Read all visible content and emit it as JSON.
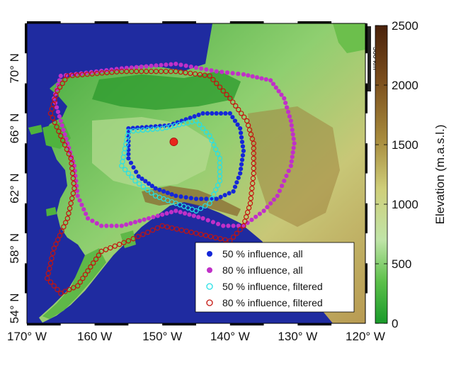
{
  "map": {
    "lon_range": [
      -170,
      -120
    ],
    "lat_range": [
      53,
      73
    ],
    "lon_ticks": [
      {
        "value": -170,
        "label": "170° W"
      },
      {
        "value": -160,
        "label": "160 W"
      },
      {
        "value": -150,
        "label": "150° W"
      },
      {
        "value": -140,
        "label": "140° W"
      },
      {
        "value": -130,
        "label": "130° W"
      },
      {
        "value": -120,
        "label": "120° W"
      }
    ],
    "lat_ticks": [
      {
        "value": 54,
        "label": "54° N"
      },
      {
        "value": 58,
        "label": "58° N"
      },
      {
        "value": 62,
        "label": "62° N"
      },
      {
        "value": 66,
        "label": "66° N"
      },
      {
        "value": 70,
        "label": "70° N"
      }
    ],
    "scale_bar_label": "500 km",
    "center_point": {
      "lon": -148.3,
      "lat": 65.1,
      "color": "#e8261c"
    },
    "colors": {
      "ocean": "#1f2ba0",
      "frame_dark": "#000000",
      "frame_light": "#ffffff"
    }
  },
  "colorbar": {
    "label": "Elevation (m.a.s.l.)",
    "ticks": [
      {
        "value": 0,
        "label": "0"
      },
      {
        "value": 500,
        "label": "500"
      },
      {
        "value": 1000,
        "label": "1000"
      },
      {
        "value": 1500,
        "label": "1500"
      },
      {
        "value": 2000,
        "label": "2000"
      },
      {
        "value": 2500,
        "label": "2500"
      }
    ],
    "range": [
      0,
      2500
    ],
    "stops": [
      "#199a2a",
      "#5cc04a",
      "#c0e4a8",
      "#cfcf7a",
      "#a78a3c",
      "#7a4d1c",
      "#4a220b"
    ]
  },
  "legend": {
    "position": "bottom-right",
    "entries": [
      {
        "label": "50 % influence, all",
        "marker": "filled",
        "color": "#1527d8"
      },
      {
        "label": "80 % influence, all",
        "marker": "filled",
        "color": "#c030c8"
      },
      {
        "label": "50 % influence, filtered",
        "marker": "open",
        "color": "#25e0e6"
      },
      {
        "label": "80 % influence, filtered",
        "marker": "open",
        "color": "#c4140e"
      }
    ]
  },
  "regions": {
    "r80_all": [
      [
        -165,
        69.5
      ],
      [
        -156,
        70
      ],
      [
        -148,
        70.3
      ],
      [
        -142,
        69.8
      ],
      [
        -138,
        69.6
      ],
      [
        -134,
        69.2
      ],
      [
        -132,
        68
      ],
      [
        -131,
        66.5
      ],
      [
        -130.5,
        65
      ],
      [
        -131,
        63.5
      ],
      [
        -132,
        62.5
      ],
      [
        -133,
        61.5
      ],
      [
        -135,
        60.5
      ],
      [
        -138,
        59.5
      ],
      [
        -141,
        59.5
      ],
      [
        -144,
        60
      ],
      [
        -148,
        60.5
      ],
      [
        -152,
        60
      ],
      [
        -156,
        59.5
      ],
      [
        -159,
        59.5
      ],
      [
        -161,
        60
      ],
      [
        -162.5,
        61.5
      ],
      [
        -163,
        63.5
      ],
      [
        -164,
        65
      ],
      [
        -165,
        66.5
      ],
      [
        -166,
        68
      ],
      [
        -165,
        69.5
      ]
    ],
    "r80_filt": [
      [
        -164,
        69.5
      ],
      [
        -156,
        69.8
      ],
      [
        -148,
        69.8
      ],
      [
        -143,
        69.5
      ],
      [
        -140,
        68
      ],
      [
        -137.5,
        66.5
      ],
      [
        -136.5,
        65
      ],
      [
        -136.5,
        63
      ],
      [
        -137,
        61
      ],
      [
        -138,
        59.5
      ],
      [
        -140,
        58.5
      ],
      [
        -145,
        59
      ],
      [
        -150,
        59.5
      ],
      [
        -155,
        58.5
      ],
      [
        -159,
        57.8
      ],
      [
        -161,
        56.5
      ],
      [
        -162.5,
        55.5
      ],
      [
        -165,
        55
      ],
      [
        -167,
        56
      ],
      [
        -166,
        58
      ],
      [
        -164,
        60
      ],
      [
        -163,
        62
      ],
      [
        -163.5,
        64
      ],
      [
        -165,
        65.5
      ],
      [
        -166.5,
        67
      ],
      [
        -165.5,
        68.5
      ],
      [
        -164,
        69.5
      ]
    ],
    "r50_all": [
      [
        -155,
        66
      ],
      [
        -149,
        66.2
      ],
      [
        -144,
        67
      ],
      [
        -140,
        67
      ],
      [
        -138.5,
        66
      ],
      [
        -138,
        64.5
      ],
      [
        -138.5,
        63
      ],
      [
        -139.5,
        61.8
      ],
      [
        -142,
        61.3
      ],
      [
        -145,
        61.3
      ],
      [
        -148,
        61.5
      ],
      [
        -151,
        62
      ],
      [
        -153.5,
        62.8
      ],
      [
        -155,
        64
      ],
      [
        -155,
        66
      ]
    ],
    "r50_filt": [
      [
        -155,
        65.8
      ],
      [
        -150,
        66
      ],
      [
        -145,
        66.5
      ],
      [
        -143,
        65.5
      ],
      [
        -141.5,
        64
      ],
      [
        -141.5,
        62.5
      ],
      [
        -143,
        61
      ],
      [
        -145,
        60.5
      ],
      [
        -148,
        61
      ],
      [
        -151,
        61.5
      ],
      [
        -154,
        62.5
      ],
      [
        -156,
        63.5
      ],
      [
        -155,
        65.8
      ]
    ]
  }
}
